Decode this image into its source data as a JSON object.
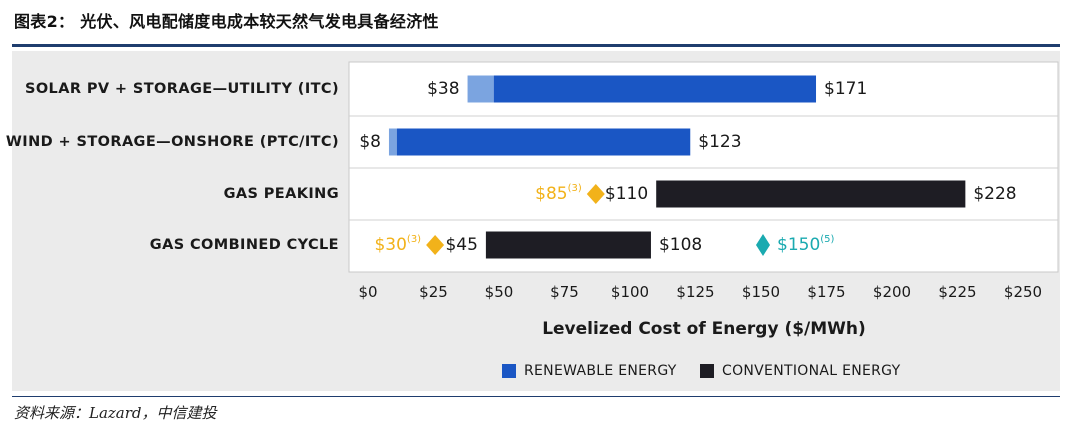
{
  "title": "图表2：  光伏、风电配储度电成本较天然气发电具备经济性",
  "source": "资料来源：Lazard，中信建投",
  "colors": {
    "renewable": "#1a56c4",
    "renewable_light": "#7ba4e0",
    "conventional": "#1e1d24",
    "gold": "#f2b21a",
    "teal": "#1aaab0",
    "panel": "#ebebeb",
    "rule": "#1f3d6e"
  },
  "chart_data": {
    "type": "bar",
    "orientation": "horizontal",
    "title": "",
    "xlabel": "Levelized Cost of Energy ($/MWh)",
    "xlim": [
      0,
      250
    ],
    "xticks": [
      "$0",
      "$25",
      "$50",
      "$75",
      "$100",
      "$125",
      "$150",
      "$175",
      "$200",
      "$225",
      "$250"
    ],
    "xtick_values": [
      0,
      25,
      50,
      75,
      100,
      125,
      150,
      175,
      200,
      225,
      250
    ],
    "categories": [
      "SOLAR PV + STORAGE—UTILITY (ITC)",
      "WIND + STORAGE—ONSHORE (PTC/ITC)",
      "GAS PEAKING",
      "GAS COMBINED CYCLE"
    ],
    "ranges": [
      {
        "category": "SOLAR PV + STORAGE—UTILITY (ITC)",
        "series": "RENEWABLE ENERGY",
        "low": 38,
        "low_dark": 48,
        "high": 171,
        "low_label": "$38",
        "high_label": "$171"
      },
      {
        "category": "WIND + STORAGE—ONSHORE (PTC/ITC)",
        "series": "RENEWABLE ENERGY",
        "low": 8,
        "low_dark": 11,
        "high": 123,
        "low_label": "$8",
        "high_label": "$123"
      },
      {
        "category": "GAS PEAKING",
        "series": "CONVENTIONAL ENERGY",
        "low": 110,
        "high": 228,
        "low_label": "$110",
        "high_label": "$228"
      },
      {
        "category": "GAS COMBINED CYCLE",
        "series": "CONVENTIONAL ENERGY",
        "low": 45,
        "high": 108,
        "low_label": "$45",
        "high_label": "$108"
      }
    ],
    "markers": [
      {
        "category": "GAS PEAKING",
        "value": 85,
        "label": "$85",
        "note": "(3)",
        "color": "gold",
        "side": "left"
      },
      {
        "category": "GAS COMBINED CYCLE",
        "value": 30,
        "label": "$30",
        "note": "(3)",
        "color": "gold",
        "side": "left"
      },
      {
        "category": "GAS COMBINED CYCLE",
        "value": 150,
        "label": "$150",
        "note": "(5)",
        "color": "teal",
        "side": "right"
      }
    ],
    "legend": {
      "position": "bottom-center",
      "items": [
        {
          "label": "RENEWABLE ENERGY",
          "color": "renewable"
        },
        {
          "label": "CONVENTIONAL ENERGY",
          "color": "conventional"
        }
      ]
    }
  }
}
